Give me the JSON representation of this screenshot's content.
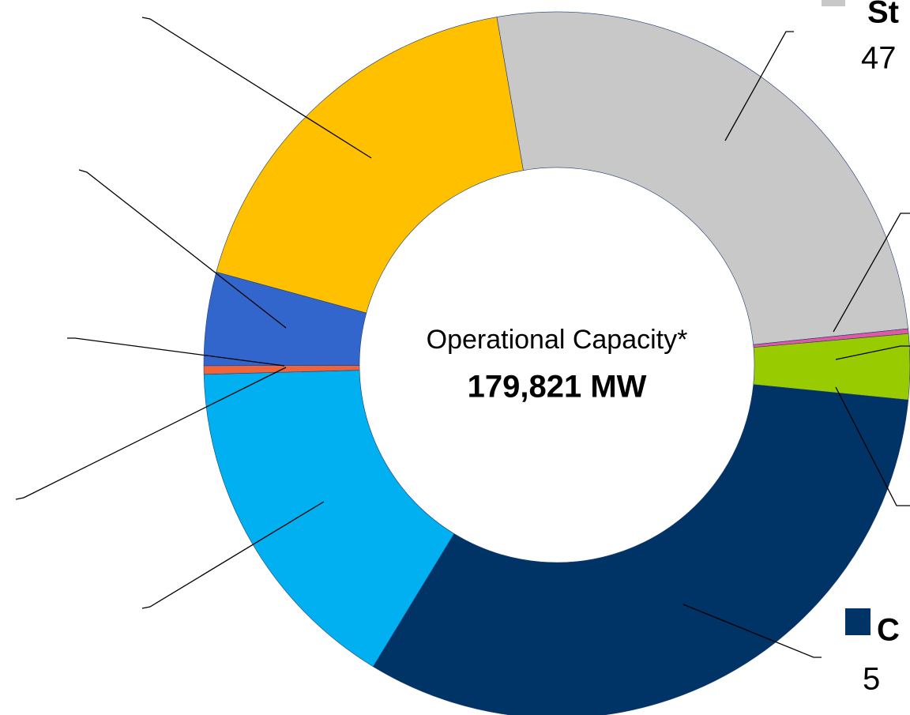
{
  "chart_data": {
    "type": "donut",
    "center_title": "Operational Capacity*",
    "center_value": "179,821 MW",
    "start_angle": 350.2,
    "categories": [
      "St",
      null,
      null,
      "C",
      null,
      null,
      null,
      null
    ],
    "values": [
      47000,
      400,
      5400,
      57900,
      28600,
      700,
      7700,
      32500
    ],
    "colors": [
      "#c8c8c8",
      "#e05aa0",
      "#99cc00",
      "#003366",
      "#00b0f0",
      "#f0643c",
      "#3366cc",
      "#ffc000"
    ],
    "annotations": [
      "47",
      "5"
    ]
  }
}
